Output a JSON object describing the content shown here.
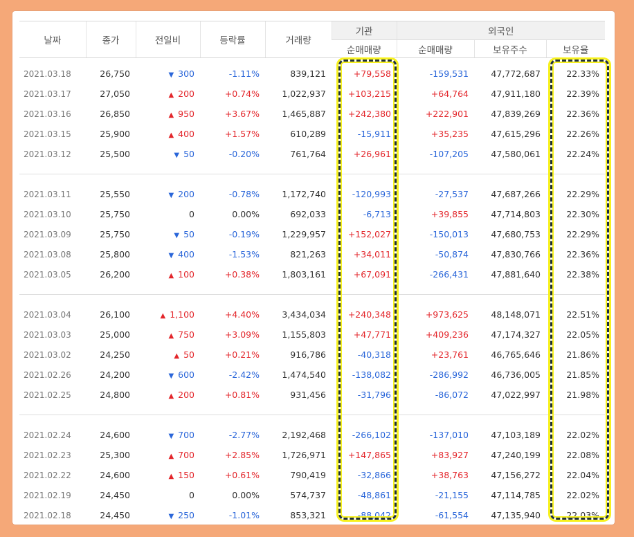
{
  "header": {
    "date": "날짜",
    "close": "종가",
    "change": "전일비",
    "rate": "등락률",
    "volume": "거래량",
    "inst_group": "기관",
    "inst_net": "순매매량",
    "foreign_group": "외국인",
    "foreign_net": "순매매량",
    "foreign_holdings": "보유주수",
    "foreign_ratio": "보유율"
  },
  "groups": [
    [
      {
        "date": "2021.03.18",
        "close": "26,750",
        "dir": "down",
        "change": "300",
        "rate": "-1.11%",
        "volume": "839,121",
        "inst": "+79,558",
        "foreign": "-159,531",
        "holdings": "47,772,687",
        "ratio": "22.33%"
      },
      {
        "date": "2021.03.17",
        "close": "27,050",
        "dir": "up",
        "change": "200",
        "rate": "+0.74%",
        "volume": "1,022,937",
        "inst": "+103,215",
        "foreign": "+64,764",
        "holdings": "47,911,180",
        "ratio": "22.39%"
      },
      {
        "date": "2021.03.16",
        "close": "26,850",
        "dir": "up",
        "change": "950",
        "rate": "+3.67%",
        "volume": "1,465,887",
        "inst": "+242,380",
        "foreign": "+222,901",
        "holdings": "47,839,269",
        "ratio": "22.36%"
      },
      {
        "date": "2021.03.15",
        "close": "25,900",
        "dir": "up",
        "change": "400",
        "rate": "+1.57%",
        "volume": "610,289",
        "inst": "-15,911",
        "foreign": "+35,235",
        "holdings": "47,615,296",
        "ratio": "22.26%"
      },
      {
        "date": "2021.03.12",
        "close": "25,500",
        "dir": "down",
        "change": "50",
        "rate": "-0.20%",
        "volume": "761,764",
        "inst": "+26,961",
        "foreign": "-107,205",
        "holdings": "47,580,061",
        "ratio": "22.24%"
      }
    ],
    [
      {
        "date": "2021.03.11",
        "close": "25,550",
        "dir": "down",
        "change": "200",
        "rate": "-0.78%",
        "volume": "1,172,740",
        "inst": "-120,993",
        "foreign": "-27,537",
        "holdings": "47,687,266",
        "ratio": "22.29%"
      },
      {
        "date": "2021.03.10",
        "close": "25,750",
        "dir": "none",
        "change": "0",
        "rate": "0.00%",
        "volume": "692,033",
        "inst": "-6,713",
        "foreign": "+39,855",
        "holdings": "47,714,803",
        "ratio": "22.30%"
      },
      {
        "date": "2021.03.09",
        "close": "25,750",
        "dir": "down",
        "change": "50",
        "rate": "-0.19%",
        "volume": "1,229,957",
        "inst": "+152,027",
        "foreign": "-150,013",
        "holdings": "47,680,753",
        "ratio": "22.29%"
      },
      {
        "date": "2021.03.08",
        "close": "25,800",
        "dir": "down",
        "change": "400",
        "rate": "-1.53%",
        "volume": "821,263",
        "inst": "+34,011",
        "foreign": "-50,874",
        "holdings": "47,830,766",
        "ratio": "22.36%"
      },
      {
        "date": "2021.03.05",
        "close": "26,200",
        "dir": "up",
        "change": "100",
        "rate": "+0.38%",
        "volume": "1,803,161",
        "inst": "+67,091",
        "foreign": "-266,431",
        "holdings": "47,881,640",
        "ratio": "22.38%"
      }
    ],
    [
      {
        "date": "2021.03.04",
        "close": "26,100",
        "dir": "up",
        "change": "1,100",
        "rate": "+4.40%",
        "volume": "3,434,034",
        "inst": "+240,348",
        "foreign": "+973,625",
        "holdings": "48,148,071",
        "ratio": "22.51%"
      },
      {
        "date": "2021.03.03",
        "close": "25,000",
        "dir": "up",
        "change": "750",
        "rate": "+3.09%",
        "volume": "1,155,803",
        "inst": "+47,771",
        "foreign": "+409,236",
        "holdings": "47,174,327",
        "ratio": "22.05%"
      },
      {
        "date": "2021.03.02",
        "close": "24,250",
        "dir": "up",
        "change": "50",
        "rate": "+0.21%",
        "volume": "916,786",
        "inst": "-40,318",
        "foreign": "+23,761",
        "holdings": "46,765,646",
        "ratio": "21.86%"
      },
      {
        "date": "2021.02.26",
        "close": "24,200",
        "dir": "down",
        "change": "600",
        "rate": "-2.42%",
        "volume": "1,474,540",
        "inst": "-138,082",
        "foreign": "-286,992",
        "holdings": "46,736,005",
        "ratio": "21.85%"
      },
      {
        "date": "2021.02.25",
        "close": "24,800",
        "dir": "up",
        "change": "200",
        "rate": "+0.81%",
        "volume": "931,456",
        "inst": "-31,796",
        "foreign": "-86,072",
        "holdings": "47,022,997",
        "ratio": "21.98%"
      }
    ],
    [
      {
        "date": "2021.02.24",
        "close": "24,600",
        "dir": "down",
        "change": "700",
        "rate": "-2.77%",
        "volume": "2,192,468",
        "inst": "-266,102",
        "foreign": "-137,010",
        "holdings": "47,103,189",
        "ratio": "22.02%"
      },
      {
        "date": "2021.02.23",
        "close": "25,300",
        "dir": "up",
        "change": "700",
        "rate": "+2.85%",
        "volume": "1,726,971",
        "inst": "+147,865",
        "foreign": "+83,927",
        "holdings": "47,240,199",
        "ratio": "22.08%"
      },
      {
        "date": "2021.02.22",
        "close": "24,600",
        "dir": "up",
        "change": "150",
        "rate": "+0.61%",
        "volume": "790,419",
        "inst": "-32,866",
        "foreign": "+38,763",
        "holdings": "47,156,272",
        "ratio": "22.04%"
      },
      {
        "date": "2021.02.19",
        "close": "24,450",
        "dir": "none",
        "change": "0",
        "rate": "0.00%",
        "volume": "574,737",
        "inst": "-48,861",
        "foreign": "-21,155",
        "holdings": "47,114,785",
        "ratio": "22.02%"
      },
      {
        "date": "2021.02.18",
        "close": "24,450",
        "dir": "down",
        "change": "250",
        "rate": "-1.01%",
        "volume": "853,321",
        "inst": "-88,042",
        "foreign": "-61,554",
        "holdings": "47,135,940",
        "ratio": "22.03%"
      }
    ]
  ],
  "colors": {
    "up": "#e3262b",
    "down": "#2a66d9",
    "highlight_border": "#1f2f3d",
    "highlight_glow": "#f7f11e",
    "frame": "#f5a878"
  },
  "icons": {
    "up": "triangle-up-icon",
    "down": "triangle-down-icon"
  }
}
